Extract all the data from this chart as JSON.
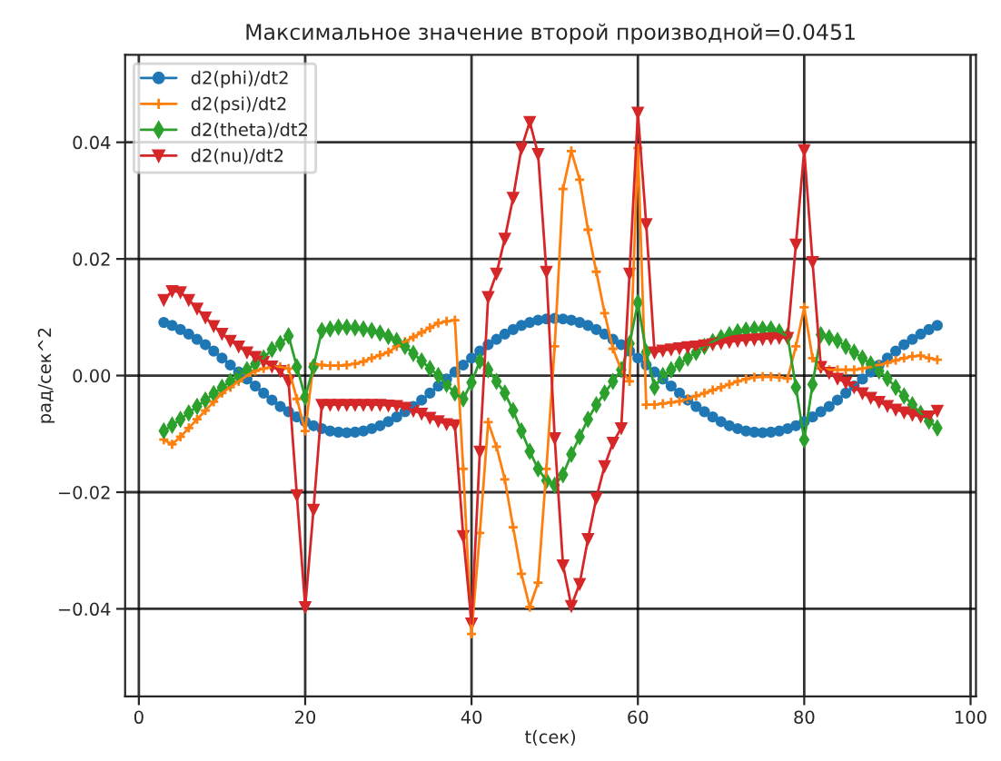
{
  "chart_data": {
    "type": "line",
    "title": "Максимальное значение второй производной=0.0451",
    "xlabel": "t(сек)",
    "ylabel": "рад/сек^2",
    "x": [
      3,
      4,
      5,
      6,
      7,
      8,
      9,
      10,
      11,
      12,
      13,
      14,
      15,
      16,
      17,
      18,
      19,
      20,
      21,
      22,
      23,
      24,
      25,
      26,
      27,
      28,
      29,
      30,
      31,
      32,
      33,
      34,
      35,
      36,
      37,
      38,
      39,
      40,
      41,
      42,
      43,
      44,
      45,
      46,
      47,
      48,
      49,
      50,
      51,
      52,
      53,
      54,
      55,
      56,
      57,
      58,
      59,
      60,
      61,
      62,
      63,
      64,
      65,
      66,
      67,
      68,
      69,
      70,
      71,
      72,
      73,
      74,
      75,
      76,
      77,
      78,
      79,
      80,
      81,
      82,
      83,
      84,
      85,
      86,
      87,
      88,
      89,
      90,
      91,
      92,
      93,
      94,
      95,
      96
    ],
    "series": [
      {
        "name": "d2(phi)/dt2",
        "color": "#1f77b4",
        "marker": "circle",
        "values": [
          0.0091,
          0.0086,
          0.0079,
          0.0071,
          0.0062,
          0.0053,
          0.0042,
          0.003,
          0.0018,
          0.0006,
          -0.0006,
          -0.0018,
          -0.003,
          -0.0042,
          -0.0053,
          -0.0062,
          -0.0071,
          -0.0079,
          -0.0086,
          -0.0091,
          -0.0095,
          -0.0097,
          -0.0098,
          -0.0097,
          -0.0095,
          -0.0091,
          -0.0086,
          -0.0079,
          -0.0071,
          -0.0062,
          -0.0053,
          -0.0042,
          -0.003,
          -0.0018,
          -0.0006,
          0.0006,
          0.0018,
          0.003,
          0.0042,
          0.0053,
          0.0062,
          0.0071,
          0.0079,
          0.0086,
          0.0091,
          0.0095,
          0.0097,
          0.0098,
          0.0097,
          0.0095,
          0.0091,
          0.0086,
          0.0079,
          0.0071,
          0.0062,
          0.0053,
          0.0042,
          0.003,
          0.0018,
          0.0006,
          -0.0006,
          -0.0018,
          -0.003,
          -0.0042,
          -0.0053,
          -0.0062,
          -0.0071,
          -0.0079,
          -0.0086,
          -0.0091,
          -0.0095,
          -0.0097,
          -0.0098,
          -0.0097,
          -0.0095,
          -0.0091,
          -0.0086,
          -0.0079,
          -0.0071,
          -0.0062,
          -0.0053,
          -0.0042,
          -0.003,
          -0.0018,
          -0.0006,
          0.0006,
          0.0018,
          0.003,
          0.0042,
          0.0053,
          0.0062,
          0.0071,
          0.0079,
          0.0086
        ]
      },
      {
        "name": "d2(psi)/dt2",
        "color": "#ff7f0e",
        "marker": "cross",
        "values": [
          -0.011,
          -0.0118,
          -0.0105,
          -0.009,
          -0.0075,
          -0.006,
          -0.0045,
          -0.003,
          -0.002,
          -0.001,
          0.0,
          0.0008,
          0.0012,
          0.0015,
          0.0015,
          0.0012,
          -0.004,
          -0.0095,
          0.002,
          0.0018,
          0.0017,
          0.0017,
          0.0018,
          0.002,
          0.0024,
          0.003,
          0.0035,
          0.004,
          0.005,
          0.0058,
          0.0066,
          0.0074,
          0.0082,
          0.009,
          0.0093,
          0.0095,
          -0.016,
          -0.0443,
          -0.027,
          -0.008,
          -0.0122,
          -0.0178,
          -0.026,
          -0.034,
          -0.0397,
          -0.0355,
          -0.016,
          0.005,
          0.032,
          0.0385,
          0.0336,
          0.025,
          0.0178,
          0.0107,
          0.0046,
          0.001,
          -0.001,
          0.039,
          -0.005,
          -0.005,
          -0.0048,
          -0.0046,
          -0.0044,
          -0.004,
          -0.0035,
          -0.003,
          -0.0025,
          -0.002,
          -0.0015,
          -0.001,
          -0.0006,
          -0.0003,
          -0.0002,
          -0.0002,
          -0.0003,
          -0.0005,
          0.005,
          0.0117,
          0.003,
          0.0012,
          0.001,
          0.001,
          0.001,
          0.001,
          0.0012,
          0.0015,
          0.0018,
          0.0022,
          0.0026,
          0.003,
          0.0033,
          0.0034,
          0.003,
          0.0027
        ]
      },
      {
        "name": "d2(theta)/dt2",
        "color": "#2ca02c",
        "marker": "diamond",
        "values": [
          -0.0095,
          -0.0085,
          -0.0075,
          -0.0064,
          -0.0053,
          -0.0042,
          -0.0031,
          -0.002,
          -0.001,
          0.0,
          0.001,
          0.002,
          0.003,
          0.0045,
          0.0055,
          0.0068,
          0.0015,
          -0.0037,
          0.0015,
          0.0077,
          0.008,
          0.0083,
          0.0083,
          0.0082,
          0.008,
          0.0077,
          0.0073,
          0.0067,
          0.006,
          0.005,
          0.0038,
          0.0025,
          0.0012,
          0.0,
          -0.0015,
          -0.003,
          -0.004,
          -0.0012,
          0.0025,
          0.001,
          -0.001,
          -0.003,
          -0.006,
          -0.0095,
          -0.013,
          -0.016,
          -0.018,
          -0.0188,
          -0.017,
          -0.0135,
          -0.0105,
          -0.0075,
          -0.005,
          -0.003,
          -0.001,
          0.001,
          0.0055,
          0.0125,
          0.004,
          -0.002,
          0.0,
          0.001,
          0.002,
          0.003,
          0.004,
          0.005,
          0.0058,
          0.0065,
          0.007,
          0.0075,
          0.0078,
          0.008,
          0.008,
          0.008,
          0.0075,
          0.0068,
          -0.002,
          -0.011,
          -0.0015,
          0.007,
          0.0065,
          0.006,
          0.005,
          0.004,
          0.003,
          0.002,
          0.0008,
          -0.0005,
          -0.002,
          -0.0035,
          -0.005,
          -0.0065,
          -0.0078,
          -0.009
        ]
      },
      {
        "name": "d2(nu)/dt2",
        "color": "#d62728",
        "marker": "triangle",
        "values": [
          0.013,
          0.0145,
          0.0143,
          0.013,
          0.0115,
          0.01,
          0.0085,
          0.0072,
          0.006,
          0.005,
          0.004,
          0.0032,
          0.0024,
          0.0016,
          0.0008,
          -0.001,
          -0.0205,
          -0.0397,
          -0.023,
          -0.005,
          -0.005,
          -0.005,
          -0.005,
          -0.005,
          -0.005,
          -0.005,
          -0.005,
          -0.0051,
          -0.0052,
          -0.0055,
          -0.006,
          -0.0065,
          -0.0072,
          -0.0078,
          -0.0083,
          -0.0085,
          -0.0275,
          -0.0425,
          -0.013,
          0.0135,
          0.0175,
          0.0235,
          0.0305,
          0.039,
          0.0435,
          0.038,
          0.0178,
          -0.0107,
          -0.0325,
          -0.0395,
          -0.0357,
          -0.028,
          -0.021,
          -0.0155,
          -0.0115,
          -0.009,
          0.0175,
          0.0451,
          0.026,
          0.004,
          0.0043,
          0.0045,
          0.0047,
          0.0049,
          0.005,
          0.0052,
          0.0054,
          0.0056,
          0.0058,
          0.006,
          0.0061,
          0.0062,
          0.0063,
          0.0064,
          0.0065,
          0.0065,
          0.0225,
          0.0387,
          0.0195,
          0.0015,
          0.0005,
          -0.0005,
          -0.0012,
          -0.002,
          -0.003,
          -0.0038,
          -0.0045,
          -0.0052,
          -0.0058,
          -0.0063,
          -0.0067,
          -0.007,
          -0.007,
          -0.006
        ]
      }
    ],
    "xlim": [
      -1.65,
      100.65
    ],
    "xticks": [
      0,
      20,
      40,
      60,
      80,
      100
    ],
    "ylim": [
      -0.055,
      0.055
    ],
    "yticks": [
      {
        "value": -0.04,
        "label": "−0.04"
      },
      {
        "value": -0.02,
        "label": "−0.02"
      },
      {
        "value": 0.0,
        "label": "0.00"
      },
      {
        "value": 0.02,
        "label": "0.02"
      },
      {
        "value": 0.04,
        "label": "0.04"
      }
    ],
    "grid": true,
    "legend": "top left",
    "line_style": "solid"
  }
}
